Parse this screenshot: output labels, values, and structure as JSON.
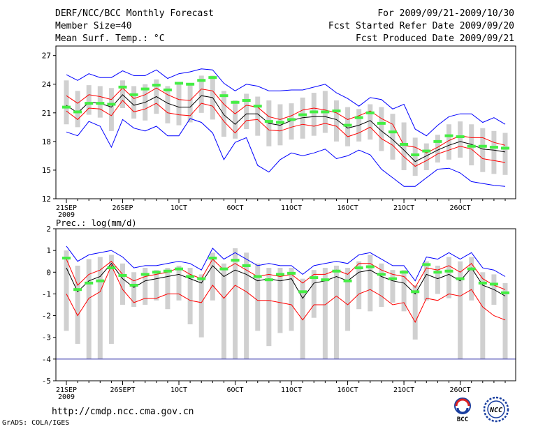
{
  "header": {
    "title": "DERF/NCC/BCC Monthly Forecast",
    "member_size": "Member Size=40",
    "variable": "Mean Surf. Temp.: °C",
    "period": "For 2009/09/21-2009/10/30",
    "started": "Fcst Started Refer Date 2009/09/20",
    "produced": "Fcst Produced Date 2009/09/21"
  },
  "footer": {
    "url": "http://cmdp.ncc.cma.gov.cn",
    "credit": "GrADS: COLA/IGES",
    "logo1_text": "BCC",
    "logo2_text": "NCC"
  },
  "colors": {
    "envelope": "#0000ff",
    "spread": "#ff0000",
    "ensemble_mean": "#000000",
    "box": "#d0d0d0",
    "climatology": "#44ee44"
  },
  "chart_data": [
    {
      "type": "line",
      "title": "Mean Surf. Temp.: °C",
      "days": 40,
      "ylim": [
        12,
        28
      ],
      "yticks": [
        12,
        15,
        18,
        21,
        24,
        27
      ],
      "xtick_days": [
        0,
        5,
        10,
        15,
        20,
        25,
        30,
        35
      ],
      "xtick_labels": [
        "21SEP",
        "26SEP",
        "1OCT",
        "6OCT",
        "11OCT",
        "16OCT",
        "21OCT",
        "26OCT"
      ],
      "x_year_label": "2009",
      "series": [
        {
          "name": "max",
          "color": "#0000ff",
          "values": [
            25.0,
            24.4,
            25.1,
            24.7,
            24.7,
            25.4,
            24.9,
            24.9,
            25.5,
            24.6,
            25.1,
            25.3,
            25.6,
            25.5,
            24.1,
            23.3,
            24.0,
            23.8,
            23.3,
            23.3,
            23.4,
            23.4,
            23.7,
            24.0,
            23.1,
            22.5,
            21.7,
            22.6,
            22.4,
            21.4,
            21.9,
            19.3,
            18.6,
            19.7,
            20.6,
            20.9,
            20.9,
            20.0,
            20.5,
            19.8
          ]
        },
        {
          "name": "upper",
          "color": "#ff0000",
          "values": [
            22.8,
            22.0,
            22.9,
            22.7,
            22.4,
            23.6,
            22.5,
            22.9,
            23.6,
            22.9,
            22.4,
            22.3,
            23.5,
            23.3,
            21.9,
            20.9,
            21.8,
            21.6,
            20.6,
            20.3,
            20.7,
            21.3,
            21.5,
            21.3,
            21.0,
            20.3,
            20.7,
            21.2,
            20.4,
            19.8,
            17.6,
            17.4,
            16.8,
            17.4,
            18.1,
            18.6,
            18.4,
            18.4,
            17.9,
            17.6
          ]
        },
        {
          "name": "mean",
          "color": "#000000",
          "values": [
            21.8,
            21.0,
            22.1,
            22.0,
            21.6,
            22.9,
            21.8,
            22.1,
            22.7,
            22.0,
            21.6,
            21.6,
            22.8,
            22.6,
            20.8,
            19.8,
            20.9,
            20.9,
            19.9,
            19.7,
            20.2,
            20.5,
            20.6,
            20.6,
            20.3,
            19.4,
            19.7,
            20.2,
            19.1,
            18.2,
            17.1,
            15.9,
            16.5,
            17.1,
            17.6,
            18.0,
            17.7,
            17.2,
            17.1,
            16.9
          ]
        },
        {
          "name": "lower",
          "color": "#ff0000",
          "values": [
            21.2,
            20.3,
            21.5,
            21.4,
            20.7,
            22.3,
            21.1,
            21.4,
            22.0,
            21.0,
            20.8,
            20.7,
            22.0,
            21.7,
            20.1,
            18.9,
            20.2,
            20.3,
            19.2,
            19.1,
            19.5,
            19.8,
            19.6,
            19.9,
            19.6,
            18.5,
            18.9,
            19.5,
            18.3,
            17.6,
            16.4,
            15.4,
            16.0,
            16.7,
            17.1,
            17.5,
            17.2,
            16.2,
            16.0,
            15.8
          ]
        },
        {
          "name": "min",
          "color": "#0000ff",
          "values": [
            19.0,
            18.6,
            20.1,
            19.6,
            17.4,
            20.3,
            19.4,
            19.1,
            19.6,
            18.6,
            18.6,
            20.4,
            20.0,
            18.9,
            16.1,
            17.9,
            18.4,
            15.5,
            14.8,
            16.1,
            16.8,
            16.5,
            16.8,
            17.2,
            16.2,
            16.5,
            17.1,
            16.6,
            15.1,
            14.2,
            13.3,
            13.3,
            14.2,
            15.1,
            15.2,
            14.7,
            13.8,
            13.6,
            13.4,
            13.3
          ]
        }
      ],
      "boxes_low": [
        19.8,
        19.5,
        20.8,
        20.5,
        19.1,
        21.5,
        20.4,
        20.2,
        20.9,
        19.9,
        19.7,
        20.0,
        21.0,
        20.3,
        18.5,
        18.3,
        19.3,
        18.6,
        17.5,
        17.6,
        18.2,
        18.3,
        18.6,
        18.9,
        18.0,
        17.5,
        18.0,
        18.2,
        17.0,
        16.1,
        15.0,
        14.4,
        15.0,
        15.8,
        16.1,
        16.3,
        15.5,
        14.8,
        14.6,
        14.5
      ],
      "boxes_high": [
        24.4,
        23.3,
        23.9,
        23.8,
        23.6,
        24.4,
        23.8,
        24.0,
        24.5,
        23.8,
        24.0,
        24.0,
        24.9,
        24.9,
        23.3,
        22.3,
        23.0,
        22.7,
        22.3,
        21.9,
        22.0,
        22.6,
        23.1,
        23.3,
        22.3,
        21.6,
        21.4,
        21.9,
        21.6,
        20.9,
        20.0,
        18.4,
        17.8,
        18.7,
        19.8,
        20.1,
        19.8,
        19.4,
        19.1,
        18.9
      ],
      "climatology": [
        21.6,
        21.1,
        22.0,
        22.0,
        21.9,
        23.7,
        22.9,
        23.5,
        23.9,
        23.4,
        24.1,
        24.0,
        24.4,
        24.7,
        22.8,
        22.1,
        22.3,
        21.7,
        20.1,
        20.0,
        20.3,
        20.8,
        21.1,
        21.1,
        21.2,
        19.7,
        20.5,
        21.0,
        19.9,
        19.0,
        17.7,
        16.6,
        17.0,
        18.0,
        18.6,
        18.5,
        17.5,
        17.5,
        17.4,
        17.3
      ]
    },
    {
      "type": "line",
      "title": "Prec.: log(mm/d)",
      "days": 40,
      "ylim": [
        -5,
        2
      ],
      "yticks": [
        -5,
        -4,
        -3,
        -2,
        -1,
        0,
        1,
        2
      ],
      "xtick_days": [
        0,
        5,
        10,
        15,
        20,
        25,
        30,
        35
      ],
      "xtick_labels": [
        "21SEP",
        "26SEPT",
        "1OCT",
        "6OCT",
        "11OCT",
        "16OCT",
        "21OCT",
        "26OCT"
      ],
      "x_year_label": "2009",
      "reference_line": -4,
      "series": [
        {
          "name": "max",
          "color": "#0000ff",
          "values": [
            1.2,
            0.5,
            0.8,
            0.9,
            1.0,
            0.7,
            0.2,
            0.3,
            0.3,
            0.4,
            0.5,
            0.4,
            0.1,
            1.1,
            0.6,
            0.9,
            0.6,
            0.3,
            0.4,
            0.3,
            0.3,
            -0.1,
            0.3,
            0.4,
            0.5,
            0.4,
            0.8,
            0.9,
            0.6,
            0.3,
            0.3,
            -0.4,
            0.7,
            0.6,
            0.9,
            0.6,
            0.9,
            0.2,
            0.1,
            -0.2
          ]
        },
        {
          "name": "upper",
          "color": "#ff0000",
          "values": [
            0.6,
            -0.6,
            -0.1,
            0.1,
            0.5,
            -0.1,
            -0.4,
            -0.2,
            -0.1,
            0.0,
            0.2,
            -0.1,
            -0.3,
            0.6,
            0.1,
            0.4,
            0.1,
            -0.2,
            -0.1,
            -0.2,
            -0.1,
            -0.5,
            -0.1,
            -0.1,
            0.1,
            -0.1,
            0.4,
            0.4,
            0.1,
            -0.1,
            -0.2,
            -0.7,
            0.2,
            0.1,
            0.3,
            0.0,
            0.4,
            -0.3,
            -0.6,
            -0.8
          ]
        },
        {
          "name": "mean",
          "color": "#000000",
          "values": [
            0.2,
            -0.9,
            -0.4,
            -0.2,
            0.4,
            -0.3,
            -0.7,
            -0.4,
            -0.3,
            -0.2,
            -0.1,
            -0.3,
            -0.5,
            0.3,
            -0.2,
            0.1,
            -0.1,
            -0.4,
            -0.3,
            -0.4,
            -0.3,
            -1.2,
            -0.5,
            -0.4,
            -0.2,
            -0.4,
            0.0,
            0.1,
            -0.2,
            -0.4,
            -0.5,
            -1.0,
            -0.1,
            -0.3,
            -0.1,
            -0.4,
            0.2,
            -0.6,
            -0.8,
            -1.1
          ]
        },
        {
          "name": "lower",
          "color": "#ff0000",
          "values": [
            -1.0,
            -2.0,
            -1.2,
            -0.9,
            0.3,
            -0.8,
            -1.4,
            -1.2,
            -1.2,
            -1.0,
            -1.0,
            -1.3,
            -1.4,
            -0.6,
            -1.2,
            -0.6,
            -0.9,
            -1.3,
            -1.3,
            -1.4,
            -1.5,
            -2.2,
            -1.5,
            -1.5,
            -1.1,
            -1.5,
            -1.0,
            -0.8,
            -1.1,
            -1.5,
            -1.4,
            -2.3,
            -1.2,
            -1.3,
            -1.0,
            -1.1,
            -0.8,
            -1.6,
            -2.0,
            -2.2
          ]
        }
      ],
      "boxes_low": [
        -2.7,
        -3.3,
        -4.0,
        -4.0,
        -3.3,
        -1.5,
        -1.6,
        -1.5,
        -1.3,
        -1.7,
        -1.3,
        -2.4,
        -3.0,
        -1.3,
        -4.0,
        -4.0,
        -4.0,
        -2.7,
        -3.4,
        -2.8,
        -2.7,
        -4.0,
        -2.1,
        -4.0,
        -4.0,
        -2.7,
        -1.7,
        -1.8,
        -1.6,
        -1.4,
        -1.8,
        -3.1,
        -1.3,
        -1.0,
        -1.2,
        -4.0,
        -1.3,
        -4.0,
        -1.5,
        -4.0
      ],
      "boxes_high": [
        1.0,
        0.3,
        0.6,
        0.7,
        0.8,
        0.4,
        0.0,
        0.2,
        0.1,
        0.2,
        0.3,
        0.2,
        -0.1,
        0.9,
        0.4,
        1.1,
        0.9,
        0.4,
        0.2,
        0.2,
        0.2,
        -0.3,
        0.1,
        0.2,
        0.3,
        0.2,
        0.5,
        0.8,
        0.4,
        0.1,
        0.1,
        -0.6,
        0.5,
        0.3,
        0.7,
        0.5,
        0.7,
        0.0,
        -0.1,
        -0.5
      ],
      "climatology": [
        0.65,
        -0.8,
        -0.5,
        -0.4,
        0.2,
        -0.15,
        -0.6,
        -0.1,
        0.0,
        0.05,
        0.15,
        -0.2,
        -0.3,
        0.65,
        0.15,
        0.55,
        0.3,
        -0.2,
        -0.35,
        -0.1,
        -0.05,
        -0.9,
        -0.25,
        -0.35,
        0.05,
        -0.4,
        0.2,
        0.25,
        -0.1,
        -0.3,
        0.0,
        -0.9,
        0.35,
        0.0,
        0.05,
        -0.3,
        0.15,
        -0.5,
        -0.55,
        -0.95
      ]
    }
  ]
}
